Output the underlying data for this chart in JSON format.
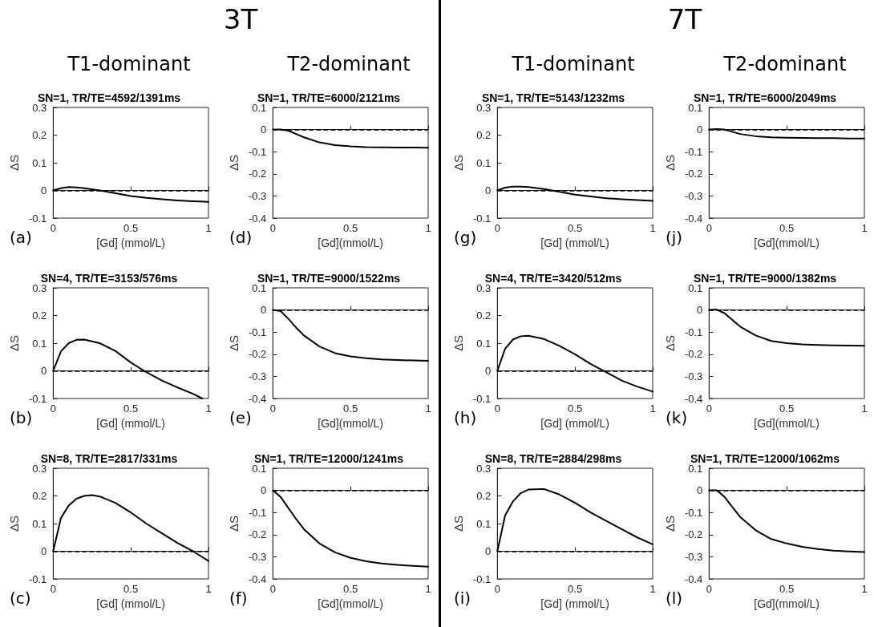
{
  "chart_data": [
    {
      "type": "line",
      "title": "SN=1, TR/TE=4592/1391ms",
      "xlabel": "[Gd] (mmol/L)",
      "ylabel": "ΔS",
      "annotations": [
        "3T",
        "T1-dominant",
        "(a)"
      ],
      "x": [
        0,
        0.05,
        0.1,
        0.15,
        0.2,
        0.3,
        0.4,
        0.5,
        0.6,
        0.7,
        0.8,
        0.9,
        1
      ],
      "values": [
        0,
        0.008,
        0.012,
        0.011,
        0.008,
        0,
        -0.01,
        -0.02,
        -0.027,
        -0.032,
        -0.036,
        -0.039,
        -0.041
      ],
      "color": "#000000",
      "xlim": [
        0,
        1
      ],
      "xticks": [
        0,
        0.5,
        1
      ],
      "ylim": [
        -0.1,
        0.3
      ],
      "yticks": [
        -0.1,
        0,
        0.1,
        0.2,
        0.3
      ],
      "ref_lines": [
        {
          "axis": "y",
          "value": 0,
          "line_style": "dashed"
        }
      ],
      "marker": "none",
      "grid": false
    },
    {
      "type": "line",
      "title": "SN=1, TR/TE=6000/2121ms",
      "xlabel": "[Gd](mmol/L)",
      "ylabel": "ΔS",
      "annotations": [
        "T2-dominant",
        "(d)"
      ],
      "x": [
        0,
        0.05,
        0.1,
        0.15,
        0.2,
        0.3,
        0.4,
        0.5,
        0.6,
        0.7,
        0.8,
        0.9,
        1
      ],
      "values": [
        0,
        0,
        -0.005,
        -0.02,
        -0.035,
        -0.058,
        -0.07,
        -0.076,
        -0.079,
        -0.08,
        -0.081,
        -0.081,
        -0.082
      ],
      "color": "#000000",
      "xlim": [
        0,
        1
      ],
      "xticks": [
        0,
        0.5,
        1
      ],
      "ylim": [
        -0.4,
        0.1
      ],
      "yticks": [
        -0.4,
        -0.3,
        -0.2,
        -0.1,
        0,
        0.1
      ],
      "ref_lines": [
        {
          "axis": "y",
          "value": 0,
          "line_style": "dashed"
        }
      ],
      "marker": "none",
      "grid": false
    },
    {
      "type": "line",
      "title": "SN=1, TR/TE=5143/1232ms",
      "xlabel": "[Gd] (mmol/L)",
      "ylabel": "ΔS",
      "annotations": [
        "7T",
        "T1-dominant",
        "(g)"
      ],
      "x": [
        0,
        0.05,
        0.1,
        0.15,
        0.2,
        0.3,
        0.4,
        0.5,
        0.6,
        0.7,
        0.8,
        0.9,
        1
      ],
      "values": [
        0,
        0.01,
        0.014,
        0.014,
        0.012,
        0.005,
        -0.005,
        -0.015,
        -0.022,
        -0.028,
        -0.032,
        -0.035,
        -0.038
      ],
      "color": "#000000",
      "xlim": [
        0,
        1
      ],
      "xticks": [
        0,
        0.5,
        1
      ],
      "ylim": [
        -0.1,
        0.3
      ],
      "yticks": [
        -0.1,
        0,
        0.1,
        0.2,
        0.3
      ],
      "ref_lines": [
        {
          "axis": "y",
          "value": 0,
          "line_style": "dashed"
        }
      ],
      "marker": "none",
      "grid": false
    },
    {
      "type": "line",
      "title": "SN=1, TR/TE=6000/2049ms",
      "xlabel": "[Gd](mmol/L)",
      "ylabel": "ΔS",
      "annotations": [
        "T2-dominant",
        "(j)"
      ],
      "x": [
        0,
        0.05,
        0.1,
        0.15,
        0.2,
        0.3,
        0.4,
        0.5,
        0.6,
        0.7,
        0.8,
        0.9,
        1
      ],
      "values": [
        0,
        0.002,
        0,
        -0.01,
        -0.02,
        -0.03,
        -0.035,
        -0.037,
        -0.038,
        -0.039,
        -0.039,
        -0.04,
        -0.04
      ],
      "color": "#000000",
      "xlim": [
        0,
        1
      ],
      "xticks": [
        0,
        0.5,
        1
      ],
      "ylim": [
        -0.4,
        0.1
      ],
      "yticks": [
        -0.4,
        -0.3,
        -0.2,
        -0.1,
        0,
        0.1
      ],
      "ref_lines": [
        {
          "axis": "y",
          "value": 0,
          "line_style": "dashed"
        }
      ],
      "marker": "none",
      "grid": false
    },
    {
      "type": "line",
      "title": "SN=4, TR/TE=3153/576ms",
      "xlabel": "[Gd] (mmol/L)",
      "ylabel": "ΔS",
      "annotations": [
        "(b)"
      ],
      "x": [
        0,
        0.05,
        0.1,
        0.15,
        0.2,
        0.3,
        0.4,
        0.5,
        0.6,
        0.7,
        0.8,
        0.9,
        0.96
      ],
      "values": [
        0,
        0.07,
        0.1,
        0.112,
        0.113,
        0.1,
        0.072,
        0.03,
        -0.005,
        -0.035,
        -0.06,
        -0.083,
        -0.1
      ],
      "color": "#000000",
      "xlim": [
        0,
        1
      ],
      "xticks": [
        0,
        0.5,
        1
      ],
      "ylim": [
        -0.1,
        0.3
      ],
      "yticks": [
        -0.1,
        0,
        0.1,
        0.2,
        0.3
      ],
      "ref_lines": [
        {
          "axis": "y",
          "value": 0,
          "line_style": "dashed"
        }
      ],
      "marker": "none",
      "grid": false
    },
    {
      "type": "line",
      "title": "SN=1, TR/TE=9000/1522ms",
      "xlabel": "[Gd](mmol/L)",
      "ylabel": "ΔS",
      "annotations": [
        "(e)"
      ],
      "x": [
        0,
        0.05,
        0.1,
        0.15,
        0.2,
        0.3,
        0.4,
        0.5,
        0.6,
        0.7,
        0.8,
        0.9,
        1
      ],
      "values": [
        0,
        -0.005,
        -0.04,
        -0.08,
        -0.115,
        -0.165,
        -0.195,
        -0.21,
        -0.218,
        -0.223,
        -0.226,
        -0.228,
        -0.23
      ],
      "color": "#000000",
      "xlim": [
        0,
        1
      ],
      "xticks": [
        0,
        0.5,
        1
      ],
      "ylim": [
        -0.4,
        0.1
      ],
      "yticks": [
        -0.4,
        -0.3,
        -0.2,
        -0.1,
        0,
        0.1
      ],
      "ref_lines": [
        {
          "axis": "y",
          "value": 0,
          "line_style": "dashed"
        }
      ],
      "marker": "none",
      "grid": false
    },
    {
      "type": "line",
      "title": "SN=4, TR/TE=3420/512ms",
      "xlabel": "[Gd] (mmol/L)",
      "ylabel": "ΔS",
      "annotations": [
        "(h)"
      ],
      "x": [
        0,
        0.05,
        0.1,
        0.15,
        0.2,
        0.3,
        0.4,
        0.5,
        0.6,
        0.7,
        0.8,
        0.9,
        1
      ],
      "values": [
        0,
        0.08,
        0.113,
        0.125,
        0.127,
        0.115,
        0.09,
        0.06,
        0.025,
        -0.005,
        -0.035,
        -0.057,
        -0.075
      ],
      "color": "#000000",
      "xlim": [
        0,
        1
      ],
      "xticks": [
        0,
        0.5,
        1
      ],
      "ylim": [
        -0.1,
        0.3
      ],
      "yticks": [
        -0.1,
        0,
        0.1,
        0.2,
        0.3
      ],
      "ref_lines": [
        {
          "axis": "y",
          "value": 0,
          "line_style": "dashed"
        }
      ],
      "marker": "none",
      "grid": false
    },
    {
      "type": "line",
      "title": "SN=1, TR/TE=9000/1382ms",
      "xlabel": "[Gd](mmol/L)",
      "ylabel": "ΔS",
      "annotations": [
        "(k)"
      ],
      "x": [
        0,
        0.05,
        0.1,
        0.15,
        0.2,
        0.3,
        0.4,
        0.5,
        0.6,
        0.7,
        0.8,
        0.9,
        1
      ],
      "values": [
        0,
        0.002,
        -0.015,
        -0.045,
        -0.075,
        -0.115,
        -0.14,
        -0.15,
        -0.155,
        -0.158,
        -0.16,
        -0.161,
        -0.162
      ],
      "color": "#000000",
      "xlim": [
        0,
        1
      ],
      "xticks": [
        0,
        0.5,
        1
      ],
      "ylim": [
        -0.4,
        0.1
      ],
      "yticks": [
        -0.4,
        -0.3,
        -0.2,
        -0.1,
        0,
        0.1
      ],
      "ref_lines": [
        {
          "axis": "y",
          "value": 0,
          "line_style": "dashed"
        }
      ],
      "marker": "none",
      "grid": false
    },
    {
      "type": "line",
      "title": "SN=8, TR/TE=2817/331ms",
      "xlabel": "[Gd] (mmol/L)",
      "ylabel": "ΔS",
      "annotations": [
        "(c)"
      ],
      "x": [
        0,
        0.05,
        0.1,
        0.15,
        0.2,
        0.25,
        0.3,
        0.4,
        0.5,
        0.6,
        0.7,
        0.8,
        0.9,
        1
      ],
      "values": [
        0,
        0.12,
        0.165,
        0.19,
        0.2,
        0.203,
        0.198,
        0.175,
        0.14,
        0.1,
        0.065,
        0.03,
        0,
        -0.035
      ],
      "color": "#000000",
      "xlim": [
        0,
        1
      ],
      "xticks": [
        0,
        0.5,
        1
      ],
      "ylim": [
        -0.1,
        0.3
      ],
      "yticks": [
        -0.1,
        0,
        0.1,
        0.2,
        0.3
      ],
      "ref_lines": [
        {
          "axis": "y",
          "value": 0,
          "line_style": "dashed"
        }
      ],
      "marker": "none",
      "grid": false
    },
    {
      "type": "line",
      "title": "SN=1, TR/TE=12000/1241ms",
      "xlabel": "[Gd](mmol/L)",
      "ylabel": "ΔS",
      "annotations": [
        "(f)"
      ],
      "x": [
        0,
        0.05,
        0.1,
        0.15,
        0.2,
        0.3,
        0.4,
        0.5,
        0.6,
        0.7,
        0.8,
        0.9,
        1
      ],
      "values": [
        0,
        -0.03,
        -0.08,
        -0.13,
        -0.175,
        -0.24,
        -0.28,
        -0.305,
        -0.32,
        -0.33,
        -0.337,
        -0.341,
        -0.345
      ],
      "color": "#000000",
      "xlim": [
        0,
        1
      ],
      "xticks": [
        0,
        0.5,
        1
      ],
      "ylim": [
        -0.4,
        0.1
      ],
      "yticks": [
        -0.4,
        -0.3,
        -0.2,
        -0.1,
        0,
        0.1
      ],
      "ref_lines": [
        {
          "axis": "y",
          "value": 0,
          "line_style": "dashed"
        }
      ],
      "marker": "none",
      "grid": false
    },
    {
      "type": "line",
      "title": "SN=8, TR/TE=2884/298ms",
      "xlabel": "[Gd] (mmol/L)",
      "ylabel": "ΔS",
      "annotations": [
        "(i)"
      ],
      "x": [
        0,
        0.05,
        0.1,
        0.15,
        0.2,
        0.3,
        0.4,
        0.5,
        0.6,
        0.7,
        0.8,
        0.9,
        1
      ],
      "values": [
        0,
        0.13,
        0.18,
        0.21,
        0.223,
        0.225,
        0.205,
        0.175,
        0.14,
        0.11,
        0.08,
        0.05,
        0.025
      ],
      "color": "#000000",
      "xlim": [
        0,
        1
      ],
      "xticks": [
        0,
        0.5,
        1
      ],
      "ylim": [
        -0.1,
        0.3
      ],
      "yticks": [
        -0.1,
        0,
        0.1,
        0.2,
        0.3
      ],
      "ref_lines": [
        {
          "axis": "y",
          "value": 0,
          "line_style": "dashed"
        }
      ],
      "marker": "none",
      "grid": false
    },
    {
      "type": "line",
      "title": "SN=1, TR/TE=12000/1062ms",
      "xlabel": "[Gd](mmol/L)",
      "ylabel": "ΔS",
      "annotations": [
        "(l)"
      ],
      "x": [
        0,
        0.05,
        0.1,
        0.15,
        0.2,
        0.3,
        0.4,
        0.5,
        0.6,
        0.7,
        0.8,
        0.9,
        1
      ],
      "values": [
        0,
        0,
        -0.03,
        -0.075,
        -0.12,
        -0.18,
        -0.22,
        -0.24,
        -0.255,
        -0.265,
        -0.272,
        -0.276,
        -0.279
      ],
      "color": "#000000",
      "xlim": [
        0,
        1
      ],
      "xticks": [
        0,
        0.5,
        1
      ],
      "ylim": [
        -0.4,
        0.1
      ],
      "yticks": [
        -0.4,
        -0.3,
        -0.2,
        -0.1,
        0,
        0.1
      ],
      "ref_lines": [
        {
          "axis": "y",
          "value": 0,
          "line_style": "dashed"
        }
      ],
      "marker": "none",
      "grid": false
    }
  ]
}
